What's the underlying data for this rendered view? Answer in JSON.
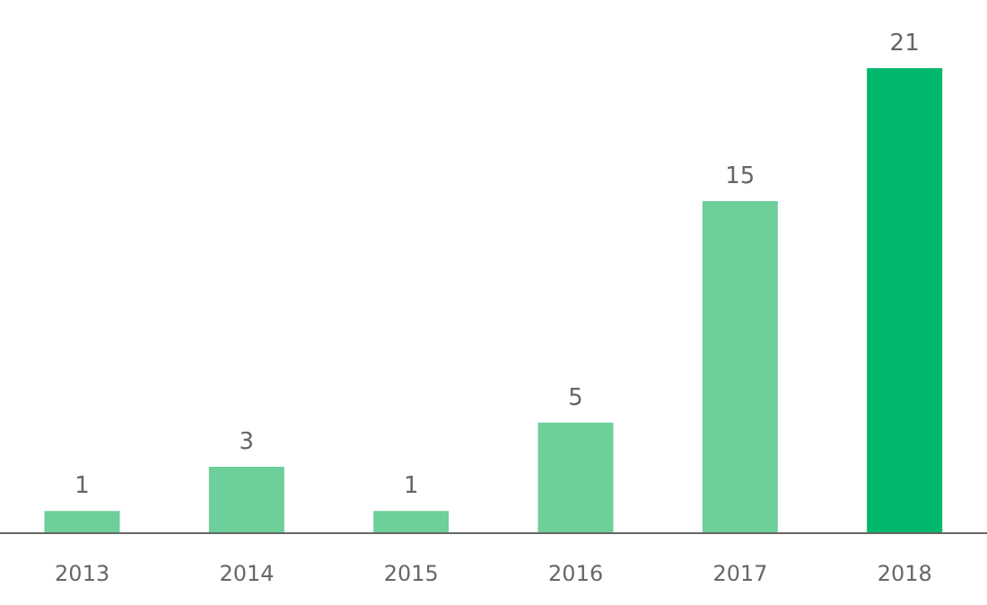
{
  "chart_data": {
    "type": "bar",
    "categories": [
      "2013",
      "2014",
      "2015",
      "2016",
      "2017",
      "2018"
    ],
    "values": [
      1,
      3,
      1,
      5,
      15,
      21
    ],
    "colors": [
      "#6dcf9a",
      "#6dcf9a",
      "#6dcf9a",
      "#6dcf9a",
      "#6dcf9a",
      "#00b86b"
    ],
    "data_labels": true
  }
}
